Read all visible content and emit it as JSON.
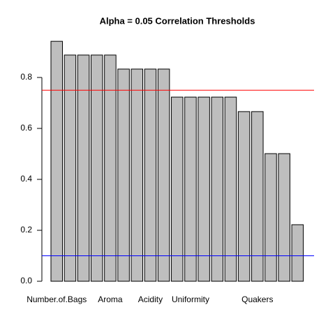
{
  "chart_data": {
    "type": "bar",
    "title": "Alpha = 0.05 Correlation Thresholds",
    "categories": [
      "Number.of.Bags",
      null,
      null,
      null,
      "Aroma",
      null,
      null,
      "Acidity",
      null,
      null,
      "Uniformity",
      null,
      null,
      null,
      null,
      "Quakers",
      null,
      null,
      null
    ],
    "values": [
      0.942,
      0.888,
      0.888,
      0.888,
      0.888,
      0.833,
      0.833,
      0.833,
      0.833,
      0.723,
      0.723,
      0.723,
      0.723,
      0.723,
      0.666,
      0.666,
      0.501,
      0.501,
      0.222
    ],
    "color": "#bebebe",
    "ylim": [
      0,
      1
    ],
    "yticks": [
      {
        "value": 0,
        "label": "0.0"
      },
      {
        "value": 0.2,
        "label": "0.2"
      },
      {
        "value": 0.4,
        "label": "0.4"
      },
      {
        "value": 0.6,
        "label": "0.6"
      },
      {
        "value": 0.8,
        "label": "0.8"
      }
    ],
    "hlines": [
      {
        "value": 0.75,
        "color": "#ff0000"
      },
      {
        "value": 0.1,
        "color": "#0000ff"
      }
    ]
  }
}
